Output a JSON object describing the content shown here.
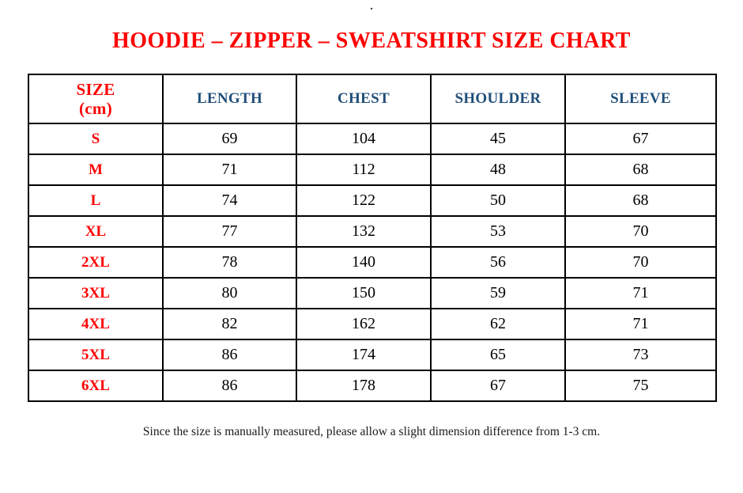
{
  "page": {
    "top_dot": ".",
    "title": "HOODIE – ZIPPER – SWEATSHIRT SIZE CHART",
    "footnote": "Since the size is manually measured, please allow a slight dimension difference from 1-3 cm."
  },
  "colors": {
    "title_red": "#FF0000",
    "header_blue": "#1F4E79",
    "text_black": "#000000",
    "border_black": "#000000",
    "background": "#FFFFFF"
  },
  "table": {
    "columns": [
      "SIZE\n(cm)",
      "LENGTH",
      "CHEST",
      "SHOULDER",
      "SLEEVE"
    ],
    "rows": [
      {
        "size": "S",
        "values": [
          "69",
          "104",
          "45",
          "67"
        ]
      },
      {
        "size": "M",
        "values": [
          "71",
          "112",
          "48",
          "68"
        ]
      },
      {
        "size": "L",
        "values": [
          "74",
          "122",
          "50",
          "68"
        ]
      },
      {
        "size": "XL",
        "values": [
          "77",
          "132",
          "53",
          "70"
        ]
      },
      {
        "size": "2XL",
        "values": [
          "78",
          "140",
          "56",
          "70"
        ]
      },
      {
        "size": "3XL",
        "values": [
          "80",
          "150",
          "59",
          "71"
        ]
      },
      {
        "size": "4XL",
        "values": [
          "82",
          "162",
          "62",
          "71"
        ]
      },
      {
        "size": "5XL",
        "values": [
          "86",
          "174",
          "65",
          "73"
        ]
      },
      {
        "size": "6XL",
        "values": [
          "86",
          "178",
          "67",
          "75"
        ]
      }
    ]
  }
}
